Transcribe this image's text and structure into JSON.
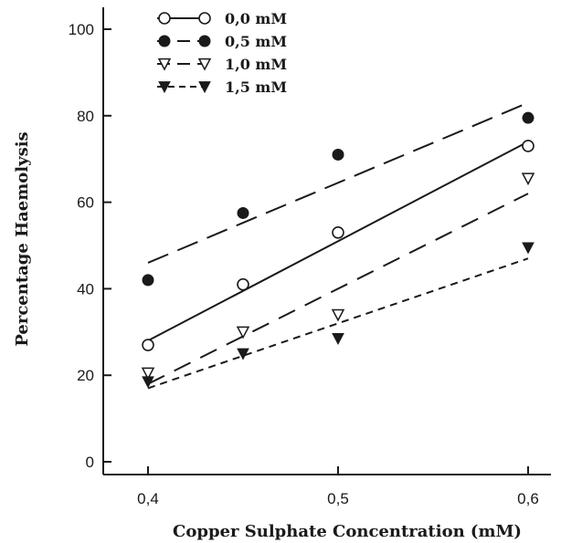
{
  "chart_data": {
    "type": "scatter",
    "title": "",
    "xlabel": "Copper Sulphate Concentration (mM)",
    "ylabel": "Percentage Haemolysis",
    "xlim": [
      0.38,
      0.62
    ],
    "ylim": [
      -3,
      104
    ],
    "xticks": [
      {
        "value": 0.4,
        "label": "0,4"
      },
      {
        "value": 0.5,
        "label": "0,5"
      },
      {
        "value": 0.6,
        "label": "0,6"
      }
    ],
    "yticks": [
      {
        "value": 0,
        "label": "0"
      },
      {
        "value": 20,
        "label": "20"
      },
      {
        "value": 40,
        "label": "40"
      },
      {
        "value": 60,
        "label": "60"
      },
      {
        "value": 80,
        "label": "80"
      },
      {
        "value": 100,
        "label": "100"
      }
    ],
    "x": [
      0.4,
      0.45,
      0.5,
      0.6
    ],
    "grid": false,
    "legend_position": "top-left",
    "series": [
      {
        "name": "0,0 mM",
        "marker": "circle-open",
        "line": "solid",
        "values": [
          27,
          41,
          53,
          73
        ],
        "fit": {
          "x": [
            0.4,
            0.6
          ],
          "y": [
            28,
            74
          ]
        }
      },
      {
        "name": "0,5 mM",
        "marker": "circle-filled",
        "line": "long-dash",
        "values": [
          42,
          57.5,
          71,
          79.5
        ],
        "fit": {
          "x": [
            0.4,
            0.6
          ],
          "y": [
            46,
            83
          ]
        }
      },
      {
        "name": "1,0 mM",
        "marker": "triangle-down-open",
        "line": "dash",
        "values": [
          20.5,
          30,
          34,
          65.5
        ],
        "fit": {
          "x": [
            0.4,
            0.6
          ],
          "y": [
            18,
            62
          ]
        }
      },
      {
        "name": "1,5 mM",
        "marker": "triangle-down-filled",
        "line": "short-dash",
        "values": [
          18.5,
          25,
          28.5,
          49.5
        ],
        "fit": {
          "x": [
            0.4,
            0.6
          ],
          "y": [
            17,
            47
          ]
        }
      }
    ]
  }
}
